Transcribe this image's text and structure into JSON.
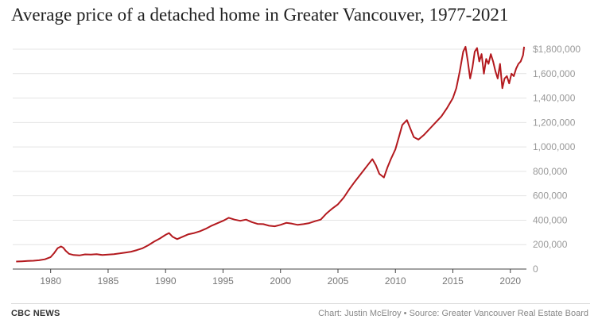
{
  "chart_data": {
    "type": "line",
    "title": "Average price of a detached home in Greater Vancouver, 1977-2021",
    "xlabel": "",
    "ylabel": "",
    "xlim": [
      1976.7,
      2021.4
    ],
    "ylim": [
      0,
      1800000
    ],
    "x_ticks": [
      1980,
      1985,
      1990,
      1995,
      2000,
      2005,
      2010,
      2015,
      2020
    ],
    "y_ticks": [
      0,
      200000,
      400000,
      600000,
      800000,
      1000000,
      1200000,
      1400000,
      1600000,
      1800000
    ],
    "y_tick_labels": [
      "0",
      "200,000",
      "400,000",
      "600,000",
      "800,000",
      "1,000,000",
      "1,200,000",
      "1,400,000",
      "1,600,000",
      "$1,800,000"
    ],
    "grid": true,
    "line_color": "#b3191e",
    "series": [
      {
        "x": [
          1977,
          1977.5,
          1978,
          1978.5,
          1979,
          1979.5,
          1980,
          1980.3,
          1980.6,
          1980.9,
          1981.1,
          1981.3,
          1981.6,
          1982,
          1982.5,
          1983,
          1983.5,
          1984,
          1984.5,
          1985,
          1985.5,
          1986,
          1986.5,
          1987,
          1987.5,
          1988,
          1988.5,
          1989,
          1989.5,
          1990,
          1990.3,
          1990.6,
          1991,
          1991.5,
          1992,
          1992.5,
          1993,
          1993.5,
          1994,
          1994.5,
          1995,
          1995.5,
          1996,
          1996.5,
          1997,
          1997.5,
          1998,
          1998.5,
          1999,
          1999.5,
          2000,
          2000.5,
          2001,
          2001.5,
          2002,
          2002.5,
          2003,
          2003.5,
          2004,
          2004.5,
          2005,
          2005.5,
          2006,
          2006.5,
          2007,
          2007.5,
          2008,
          2008.3,
          2008.6,
          2009,
          2009.3,
          2009.6,
          2010,
          2010.3,
          2010.6,
          2011,
          2011.3,
          2011.6,
          2012,
          2012.5,
          2013,
          2013.5,
          2014,
          2014.5,
          2015,
          2015.3,
          2015.6,
          2015.9,
          2016.1,
          2016.3,
          2016.5,
          2016.7,
          2016.9,
          2017.1,
          2017.3,
          2017.5,
          2017.7,
          2017.9,
          2018.1,
          2018.3,
          2018.5,
          2018.7,
          2018.9,
          2019.1,
          2019.3,
          2019.5,
          2019.7,
          2019.9,
          2020.1,
          2020.3,
          2020.5,
          2020.7,
          2020.9,
          2021.1,
          2021.2
        ],
        "y": [
          62000,
          64000,
          66000,
          68000,
          72000,
          80000,
          98000,
          130000,
          170000,
          185000,
          175000,
          150000,
          125000,
          115000,
          112000,
          120000,
          118000,
          122000,
          115000,
          118000,
          122000,
          128000,
          135000,
          142000,
          155000,
          170000,
          195000,
          225000,
          250000,
          280000,
          295000,
          265000,
          245000,
          265000,
          285000,
          295000,
          310000,
          330000,
          355000,
          375000,
          395000,
          420000,
          405000,
          395000,
          405000,
          385000,
          370000,
          368000,
          355000,
          350000,
          362000,
          378000,
          372000,
          362000,
          368000,
          376000,
          392000,
          405000,
          455000,
          495000,
          530000,
          585000,
          655000,
          720000,
          780000,
          840000,
          900000,
          850000,
          780000,
          750000,
          830000,
          900000,
          980000,
          1080000,
          1180000,
          1220000,
          1150000,
          1080000,
          1060000,
          1100000,
          1150000,
          1200000,
          1250000,
          1320000,
          1400000,
          1480000,
          1620000,
          1780000,
          1820000,
          1700000,
          1560000,
          1650000,
          1780000,
          1810000,
          1700000,
          1760000,
          1600000,
          1720000,
          1680000,
          1760000,
          1700000,
          1620000,
          1560000,
          1680000,
          1480000,
          1560000,
          1580000,
          1520000,
          1600000,
          1580000,
          1640000,
          1680000,
          1700000,
          1750000,
          1820000
        ]
      }
    ]
  },
  "footer": {
    "brand": "CBC NEWS",
    "credit": "Chart: Justin McElroy • Source: Greater Vancouver Real Estate Board"
  }
}
